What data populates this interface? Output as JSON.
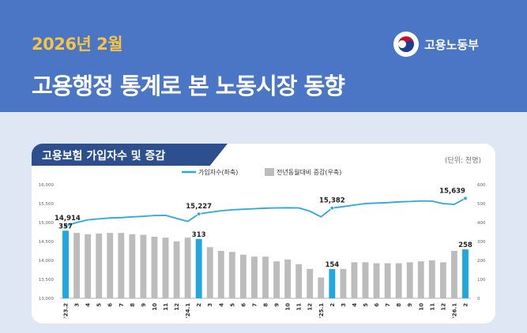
{
  "header": {
    "date_title": "2026년 2월",
    "main_title": "고용행정 통계로 본 노동시장 동향",
    "ministry": "고용노동부"
  },
  "card": {
    "title": "고용보험 가입자수 및 증감",
    "unit": "(단위: 천명)"
  },
  "colors": {
    "hero_bg": "#4a76c5",
    "date_title": "#f6c443",
    "line": "#29a9e1",
    "bar_default": "#bcbcbc",
    "bar_highlight": "#1fa8e0",
    "tab_bg": "#2d4f8e"
  },
  "chart_data": {
    "type": "bar",
    "categories": [
      "'23.2",
      "3",
      "4",
      "5",
      "6",
      "7",
      "8",
      "9",
      "10",
      "11",
      "12",
      "'24.1",
      "2",
      "3",
      "4",
      "5",
      "6",
      "7",
      "8",
      "9",
      "10",
      "11",
      "12",
      "'25.1",
      "2",
      "3",
      "4",
      "5",
      "6",
      "7",
      "8",
      "9",
      "10",
      "11",
      "12",
      "'26.1",
      "2"
    ],
    "series": [
      {
        "name": "가입자수(좌축)",
        "type": "line",
        "axis": "left",
        "values": [
          14914,
          15000,
          15070,
          15095,
          15120,
          15130,
          15150,
          15165,
          15185,
          15190,
          15110,
          15030,
          15227,
          15270,
          15310,
          15335,
          15350,
          15365,
          15380,
          15385,
          15390,
          15385,
          15300,
          15150,
          15382,
          15420,
          15460,
          15500,
          15515,
          15525,
          15545,
          15555,
          15570,
          15565,
          15500,
          15480,
          15639
        ]
      },
      {
        "name": "전년동월대비 증감(우축)",
        "type": "bar",
        "axis": "right",
        "values": [
          357,
          345,
          338,
          342,
          345,
          345,
          338,
          335,
          325,
          320,
          300,
          320,
          313,
          270,
          250,
          245,
          230,
          220,
          220,
          195,
          205,
          180,
          155,
          110,
          154,
          155,
          190,
          190,
          185,
          185,
          185,
          190,
          195,
          200,
          190,
          250,
          258
        ]
      }
    ],
    "highlight_indices": [
      0,
      12,
      24,
      36
    ],
    "line_labels": [
      {
        "index": 0,
        "text": "14,914"
      },
      {
        "index": 12,
        "text": "15,227"
      },
      {
        "index": 24,
        "text": "15,382"
      },
      {
        "index": 36,
        "text": "15,639"
      }
    ],
    "bar_labels": [
      {
        "index": 0,
        "text": "357"
      },
      {
        "index": 12,
        "text": "313"
      },
      {
        "index": 24,
        "text": "154"
      },
      {
        "index": 36,
        "text": "258"
      }
    ],
    "left_axis": {
      "min": 13000,
      "max": 16000,
      "ticks": [
        "13,000",
        "13,500",
        "14,000",
        "14,500",
        "15,000",
        "15,500",
        "16,000"
      ]
    },
    "right_axis": {
      "min": 0,
      "max": 600,
      "ticks": [
        "0",
        "100",
        "200",
        "300",
        "400",
        "500",
        "600"
      ]
    },
    "legend_position": "top-center",
    "grid": false
  }
}
